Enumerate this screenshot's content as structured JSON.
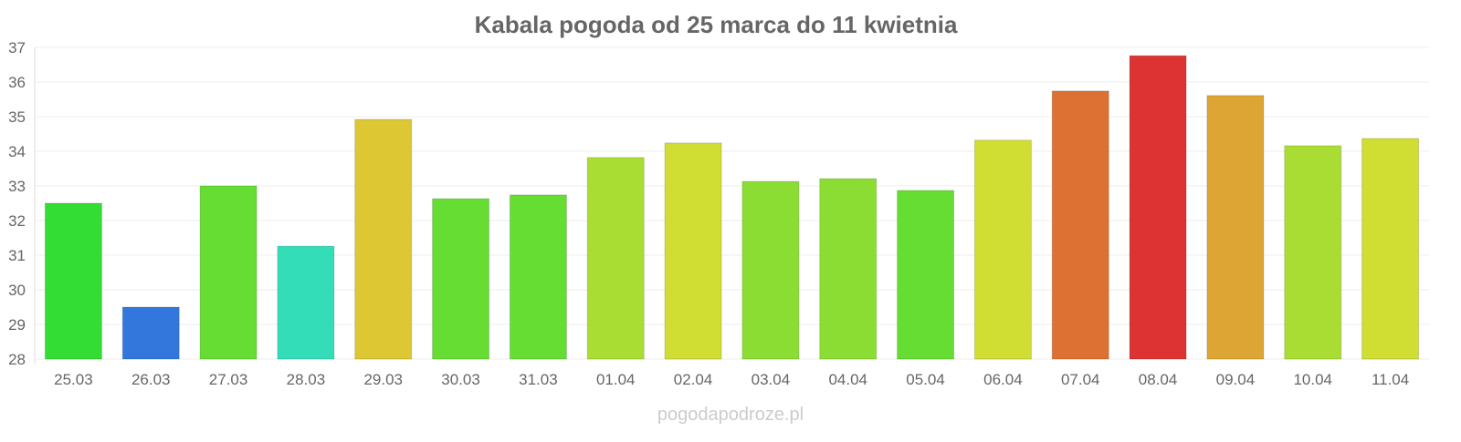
{
  "chart_data": {
    "type": "bar",
    "title": "Kabala pogoda od 25 marca do 11 kwietnia",
    "xlabel": "",
    "ylabel": "",
    "ylim": [
      28,
      37
    ],
    "yticks": [
      28,
      29,
      30,
      31,
      32,
      33,
      34,
      35,
      36,
      37
    ],
    "grid": true,
    "categories": [
      "25.03",
      "26.03",
      "27.03",
      "28.03",
      "29.03",
      "30.03",
      "31.03",
      "01.04",
      "02.04",
      "03.04",
      "04.04",
      "05.04",
      "06.04",
      "07.04",
      "08.04",
      "09.04",
      "10.04",
      "11.04"
    ],
    "values": [
      32.5,
      29.5,
      33.0,
      31.26,
      34.92,
      32.63,
      32.74,
      33.82,
      34.24,
      33.13,
      33.21,
      32.87,
      34.32,
      35.74,
      36.76,
      35.61,
      34.16,
      34.37
    ],
    "colors": [
      "#33dd33",
      "#3377dd",
      "#66dd33",
      "#33ddb8",
      "#ddc833",
      "#66dd33",
      "#66dd33",
      "#aadd33",
      "#d0dd33",
      "#8cdd33",
      "#8cdd33",
      "#66dd33",
      "#d0dd33",
      "#dd7033",
      "#dd3333",
      "#dda533",
      "#aadd33",
      "#d0dd33"
    ]
  },
  "watermark": "pogodapodroze.pl"
}
